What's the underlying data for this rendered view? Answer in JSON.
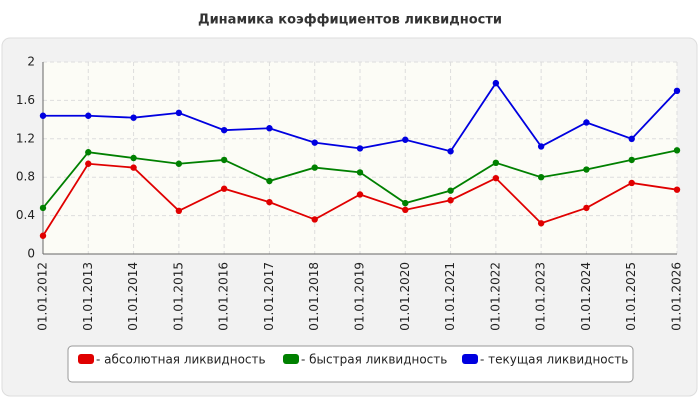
{
  "chart_data": {
    "type": "line",
    "title": "Динамика коэффициентов ликвидности",
    "categories": [
      "01.01.2012",
      "01.01.2013",
      "01.01.2014",
      "01.01.2015",
      "01.01.2016",
      "01.01.2017",
      "01.01.2018",
      "01.01.2019",
      "01.01.2020",
      "01.01.2021",
      "01.01.2022",
      "01.01.2023",
      "01.01.2024",
      "01.01.2025",
      "01.01.2026"
    ],
    "series": [
      {
        "name": "- абсолютная ликвидность",
        "color": "#e00000",
        "values": [
          0.19,
          0.94,
          0.9,
          0.45,
          0.68,
          0.54,
          0.36,
          0.62,
          0.46,
          0.56,
          0.79,
          0.32,
          0.48,
          0.74,
          0.67
        ]
      },
      {
        "name": "- быстрая ликвидность",
        "color": "#008000",
        "values": [
          0.48,
          1.06,
          1.0,
          0.94,
          0.98,
          0.76,
          0.9,
          0.85,
          0.53,
          0.66,
          0.95,
          0.8,
          0.88,
          0.98,
          1.08
        ]
      },
      {
        "name": "- текущая ликвидность",
        "color": "#0000e0",
        "values": [
          1.44,
          1.44,
          1.42,
          1.47,
          1.29,
          1.31,
          1.16,
          1.1,
          1.19,
          1.07,
          1.78,
          1.12,
          1.37,
          1.2,
          1.7
        ]
      }
    ],
    "ylim": [
      0,
      2
    ],
    "yticks": [
      0,
      0.4,
      0.8,
      1.2,
      1.6,
      2
    ],
    "grid": true,
    "legend": "bottom"
  }
}
